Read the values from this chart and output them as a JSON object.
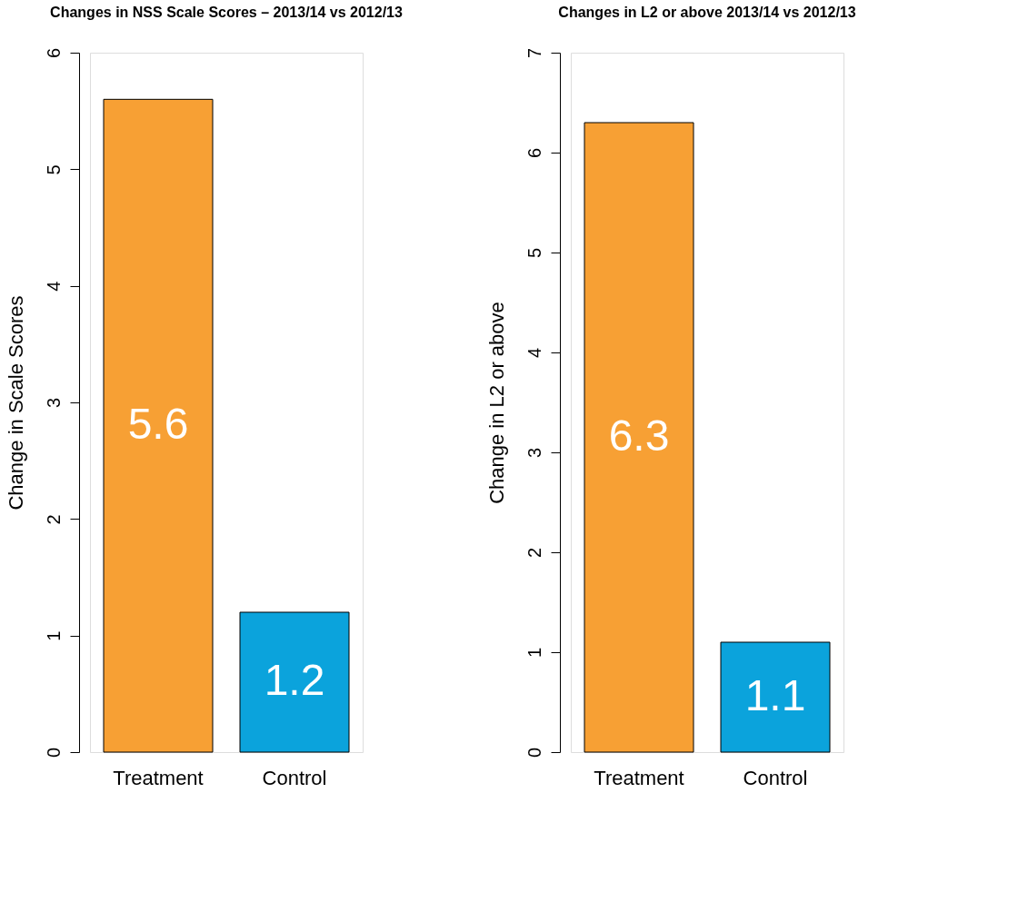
{
  "chart_data": [
    {
      "type": "bar",
      "title": "Changes in NSS Scale Scores – 2013/14 vs 2012/13",
      "ylabel": "Change in Scale Scores",
      "categories": [
        "Treatment",
        "Control"
      ],
      "values": [
        5.6,
        1.2
      ],
      "colors": [
        "#f7a034",
        "#0ba3dc"
      ],
      "ylim": [
        0,
        6
      ],
      "yticks": [
        0,
        1,
        2,
        3,
        4,
        5,
        6
      ],
      "data_labels": true
    },
    {
      "type": "bar",
      "title": "Changes in L2 or above 2013/14 vs 2012/13",
      "ylabel": "Change in L2 or above",
      "categories": [
        "Treatment",
        "Control"
      ],
      "values": [
        6.3,
        1.1
      ],
      "colors": [
        "#f7a034",
        "#0ba3dc"
      ],
      "ylim": [
        0,
        7
      ],
      "yticks": [
        0,
        1,
        2,
        3,
        4,
        5,
        6,
        7
      ],
      "data_labels": true
    }
  ]
}
